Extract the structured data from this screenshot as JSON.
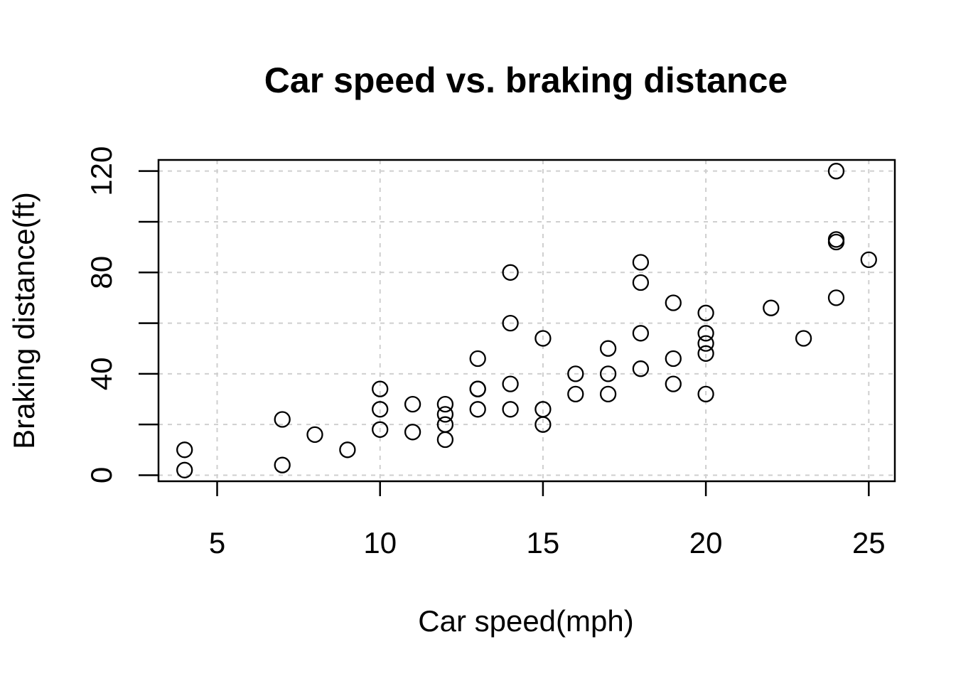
{
  "chart_data": {
    "type": "scatter",
    "title": "Car speed vs. braking distance",
    "xlabel": "Car speed(mph)",
    "ylabel": "Braking distance(ft)",
    "xlim": [
      3.2,
      25.8
    ],
    "ylim": [
      -2.4,
      124.4
    ],
    "xticks": [
      5,
      10,
      15,
      20,
      25
    ],
    "yticks": [
      0,
      40,
      80,
      120
    ],
    "yticks_minor": [
      0,
      20,
      40,
      60,
      80,
      100,
      120
    ],
    "grid": true,
    "legend": "none",
    "colors": {
      "points": "#000000",
      "grid": "#cfcfcf",
      "frame": "#000000"
    },
    "points": [
      {
        "x": 4,
        "y": 2
      },
      {
        "x": 4,
        "y": 10
      },
      {
        "x": 7,
        "y": 4
      },
      {
        "x": 7,
        "y": 22
      },
      {
        "x": 8,
        "y": 16
      },
      {
        "x": 9,
        "y": 10
      },
      {
        "x": 10,
        "y": 18
      },
      {
        "x": 10,
        "y": 26
      },
      {
        "x": 10,
        "y": 34
      },
      {
        "x": 11,
        "y": 17
      },
      {
        "x": 11,
        "y": 28
      },
      {
        "x": 12,
        "y": 14
      },
      {
        "x": 12,
        "y": 20
      },
      {
        "x": 12,
        "y": 24
      },
      {
        "x": 12,
        "y": 28
      },
      {
        "x": 13,
        "y": 26
      },
      {
        "x": 13,
        "y": 34
      },
      {
        "x": 13,
        "y": 34
      },
      {
        "x": 13,
        "y": 46
      },
      {
        "x": 14,
        "y": 26
      },
      {
        "x": 14,
        "y": 36
      },
      {
        "x": 14,
        "y": 60
      },
      {
        "x": 14,
        "y": 80
      },
      {
        "x": 15,
        "y": 20
      },
      {
        "x": 15,
        "y": 26
      },
      {
        "x": 15,
        "y": 54
      },
      {
        "x": 16,
        "y": 32
      },
      {
        "x": 16,
        "y": 40
      },
      {
        "x": 17,
        "y": 32
      },
      {
        "x": 17,
        "y": 40
      },
      {
        "x": 17,
        "y": 50
      },
      {
        "x": 18,
        "y": 42
      },
      {
        "x": 18,
        "y": 56
      },
      {
        "x": 18,
        "y": 76
      },
      {
        "x": 18,
        "y": 84
      },
      {
        "x": 19,
        "y": 36
      },
      {
        "x": 19,
        "y": 46
      },
      {
        "x": 19,
        "y": 68
      },
      {
        "x": 20,
        "y": 32
      },
      {
        "x": 20,
        "y": 48
      },
      {
        "x": 20,
        "y": 52
      },
      {
        "x": 20,
        "y": 56
      },
      {
        "x": 20,
        "y": 64
      },
      {
        "x": 22,
        "y": 66
      },
      {
        "x": 23,
        "y": 54
      },
      {
        "x": 24,
        "y": 70
      },
      {
        "x": 24,
        "y": 92
      },
      {
        "x": 24,
        "y": 93
      },
      {
        "x": 24,
        "y": 120
      },
      {
        "x": 25,
        "y": 85
      }
    ]
  }
}
